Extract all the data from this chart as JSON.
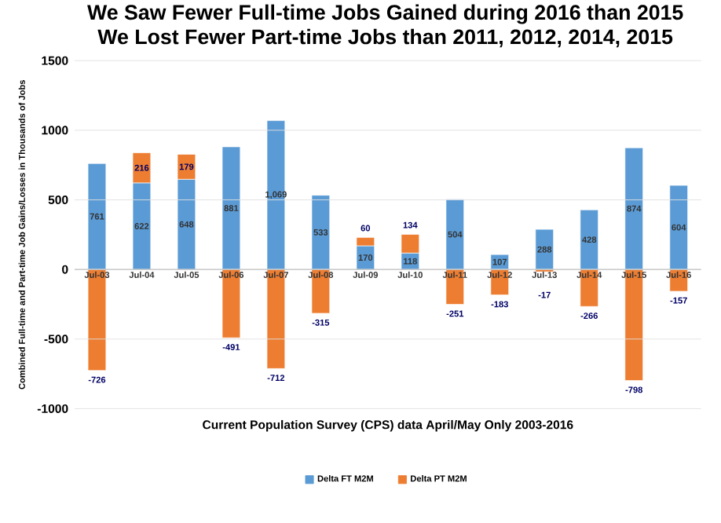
{
  "chart_data": {
    "type": "bar",
    "stacked": true,
    "title": "We Saw Fewer Full-time Jobs Gained during 2016 than 2015",
    "subtitle": "We Lost Fewer Part-time Jobs than 2011, 2012, 2014, 2015",
    "xlabel": "Current Population Survey (CPS) data April/May Only 2003-2016",
    "ylabel": "Combined Full-time and Part-time Job Gains/Losses in Thousands of Jobs",
    "categories": [
      "Jul-03",
      "Jul-04",
      "Jul-05",
      "Jul-06",
      "Jul-07",
      "Jul-08",
      "Jul-09",
      "Jul-10",
      "Jul-11",
      "Jul-12",
      "Jul-13",
      "Jul-14",
      "Jul-15",
      "Jul-16"
    ],
    "series": [
      {
        "name": "Delta FT M2M",
        "color": "#5b9bd5",
        "values": [
          761,
          622,
          648,
          881,
          1069,
          533,
          170,
          118,
          504,
          107,
          288,
          428,
          874,
          604
        ],
        "value_labels": [
          "761",
          "622",
          "648",
          "881",
          "1,069",
          "533",
          "170",
          "118",
          "504",
          "107",
          "288",
          "428",
          "874",
          "604"
        ]
      },
      {
        "name": "Delta PT M2M",
        "color": "#ed7d31",
        "values": [
          -726,
          216,
          179,
          -491,
          -712,
          -315,
          60,
          134,
          -251,
          -183,
          -17,
          -266,
          -798,
          -157
        ],
        "value_labels": [
          "-726",
          "216",
          "179",
          "-491",
          "-712",
          "-315",
          "60",
          "134",
          "-251",
          "-183",
          "-17",
          "-266",
          "-798",
          "-157"
        ]
      }
    ],
    "ylim": [
      -1000,
      1500
    ],
    "yticks": [
      -1000,
      -500,
      0,
      500,
      1000,
      1500
    ],
    "grid": "y",
    "legend": "bottom"
  }
}
